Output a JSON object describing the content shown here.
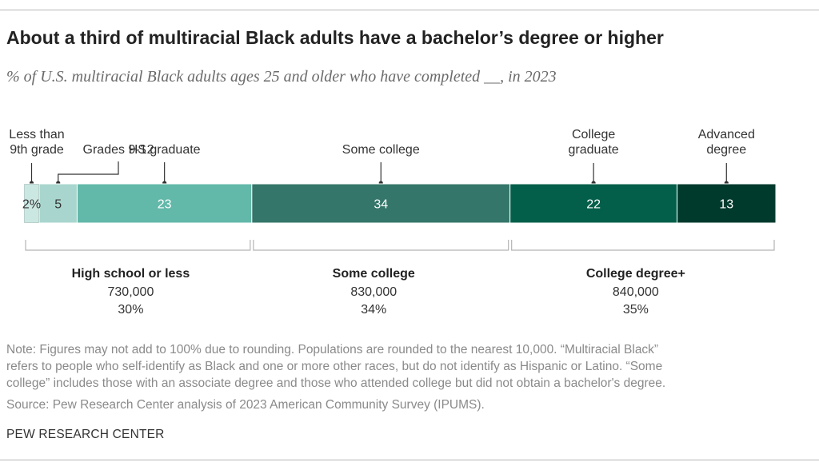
{
  "title": "About a third of multiracial Black adults have a bachelor’s degree or higher",
  "subtitle": "% of U.S. multiracial Black adults ages 25 and older who have completed __, in 2023",
  "chart_data": {
    "type": "bar",
    "orientation": "horizontal-stacked",
    "categories": [
      "Less than 9th grade",
      "Grades 9-12",
      "HS graduate",
      "Some college",
      "College graduate",
      "Advanced degree"
    ],
    "values": [
      2,
      5,
      23,
      34,
      22,
      13
    ],
    "value_labels": [
      "2%",
      "5",
      "23",
      "34",
      "22",
      "13"
    ],
    "label_lines": [
      [
        "Less than",
        "9th grade"
      ],
      [
        "Grades 9-12"
      ],
      [
        "HS graduate"
      ],
      [
        "Some college"
      ],
      [
        "College",
        "graduate"
      ],
      [
        "Advanced",
        "degree"
      ]
    ],
    "colors": [
      "#cbe7e2",
      "#a8d6ce",
      "#62b8a9",
      "#34766a",
      "#035f4a",
      "#003a2c"
    ],
    "value_label_colors": [
      "#333333",
      "#333333",
      "#ffffff",
      "#ffffff",
      "#ffffff",
      "#ffffff"
    ],
    "groups": [
      {
        "name": "High school or less",
        "count": "730,000",
        "share": "30%",
        "from": 0,
        "to": 2
      },
      {
        "name": "Some college",
        "count": "830,000",
        "share": "34%",
        "from": 3,
        "to": 3
      },
      {
        "name": "College degree+",
        "count": "840,000",
        "share": "35%",
        "from": 4,
        "to": 5
      }
    ]
  },
  "note_lines": [
    "Note: Figures may not add to 100% due to rounding. Populations are rounded to the nearest 10,000. “Multiracial Black”",
    "refers to people who self-identify as Black and one or more other races, but do not identify as Hispanic or Latino. “Some",
    "college” includes those with an associate degree and those who attended college but did not obtain a bachelor's degree."
  ],
  "source": "Source: Pew Research Center analysis of 2023 American Community Survey (IPUMS).",
  "brand": "PEW RESEARCH CENTER"
}
